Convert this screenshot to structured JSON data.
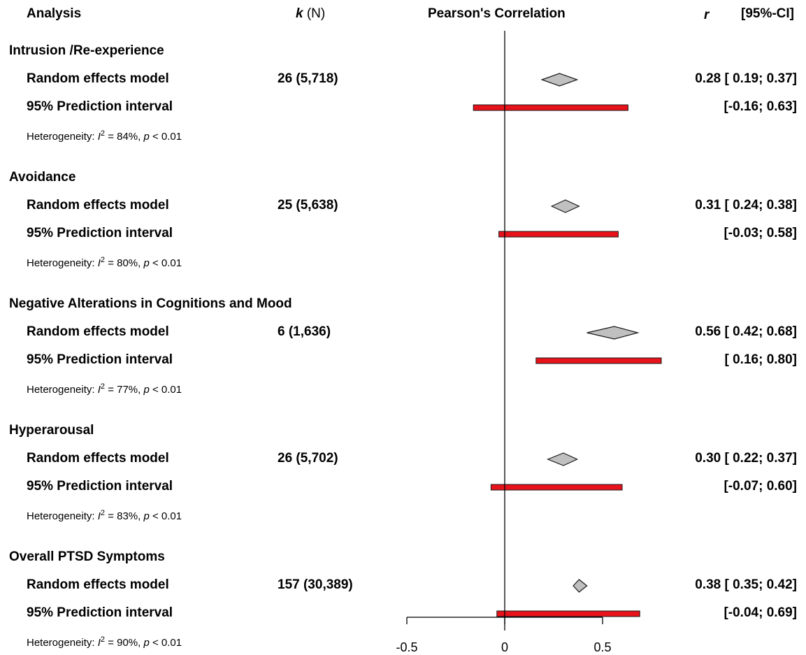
{
  "header": {
    "analysis": "Analysis",
    "k_italic": "k",
    "k_rest": " (N)",
    "pearson": "Pearson's Correlation",
    "r": "r",
    "ci": "[95%-CI]"
  },
  "chart_data": {
    "type": "forest",
    "xlim": [
      -0.5,
      0.5
    ],
    "xticks": [
      "-0.5",
      "0",
      "0.5"
    ],
    "reference_line": 0,
    "colors": {
      "diamond": "#c0c0c0",
      "prediction_bar": "#e8121a"
    },
    "groups": [
      {
        "name": "Intrusion /Re-experience",
        "model_label": "Random effects model",
        "k_n": "26 (5,718)",
        "r": 0.28,
        "ci_low": 0.19,
        "ci_high": 0.37,
        "ci_text": "0.28 [ 0.19; 0.37]",
        "pi_label": "95% Prediction interval",
        "pi_low": -0.16,
        "pi_high": 0.63,
        "pi_text": "[-0.16; 0.63]",
        "het_prefix": "Heterogeneity: ",
        "het_I": "I",
        "het_sup": "2",
        "het_mid": " = 84%, ",
        "het_p": "p",
        "het_tail": " < 0.01"
      },
      {
        "name": "Avoidance",
        "model_label": "Random effects model",
        "k_n": "25 (5,638)",
        "r": 0.31,
        "ci_low": 0.24,
        "ci_high": 0.38,
        "ci_text": "0.31 [ 0.24; 0.38]",
        "pi_label": "95% Prediction interval",
        "pi_low": -0.03,
        "pi_high": 0.58,
        "pi_text": "[-0.03; 0.58]",
        "het_prefix": "Heterogeneity: ",
        "het_I": "I",
        "het_sup": "2",
        "het_mid": " = 80%, ",
        "het_p": "p",
        "het_tail": " < 0.01"
      },
      {
        "name": "Negative Alterations in Cognitions and Mood",
        "model_label": "Random effects model",
        "k_n": "6 (1,636)",
        "r": 0.56,
        "ci_low": 0.42,
        "ci_high": 0.68,
        "ci_text": "0.56 [ 0.42; 0.68]",
        "pi_label": "95% Prediction interval",
        "pi_low": 0.16,
        "pi_high": 0.8,
        "pi_text": "[ 0.16; 0.80]",
        "het_prefix": "Heterogeneity: ",
        "het_I": "I",
        "het_sup": "2",
        "het_mid": " = 77%, ",
        "het_p": "p",
        "het_tail": " < 0.01"
      },
      {
        "name": "Hyperarousal",
        "model_label": "Random effects model",
        "k_n": "26 (5,702)",
        "r": 0.3,
        "ci_low": 0.22,
        "ci_high": 0.37,
        "ci_text": "0.30 [ 0.22; 0.37]",
        "pi_label": "95% Prediction interval",
        "pi_low": -0.07,
        "pi_high": 0.6,
        "pi_text": "[-0.07; 0.60]",
        "het_prefix": "Heterogeneity: ",
        "het_I": "I",
        "het_sup": "2",
        "het_mid": " = 83%, ",
        "het_p": "p",
        "het_tail": " < 0.01"
      },
      {
        "name": "Overall PTSD Symptoms",
        "model_label": "Random effects model",
        "k_n": "157 (30,389)",
        "r": 0.38,
        "ci_low": 0.35,
        "ci_high": 0.42,
        "ci_text": "0.38 [ 0.35; 0.42]",
        "pi_label": "95% Prediction interval",
        "pi_low": -0.04,
        "pi_high": 0.69,
        "pi_text": "[-0.04; 0.69]",
        "het_prefix": "Heterogeneity: ",
        "het_I": "I",
        "het_sup": "2",
        "het_mid": " = 90%, ",
        "het_p": "p",
        "het_tail": " < 0.01"
      }
    ]
  }
}
